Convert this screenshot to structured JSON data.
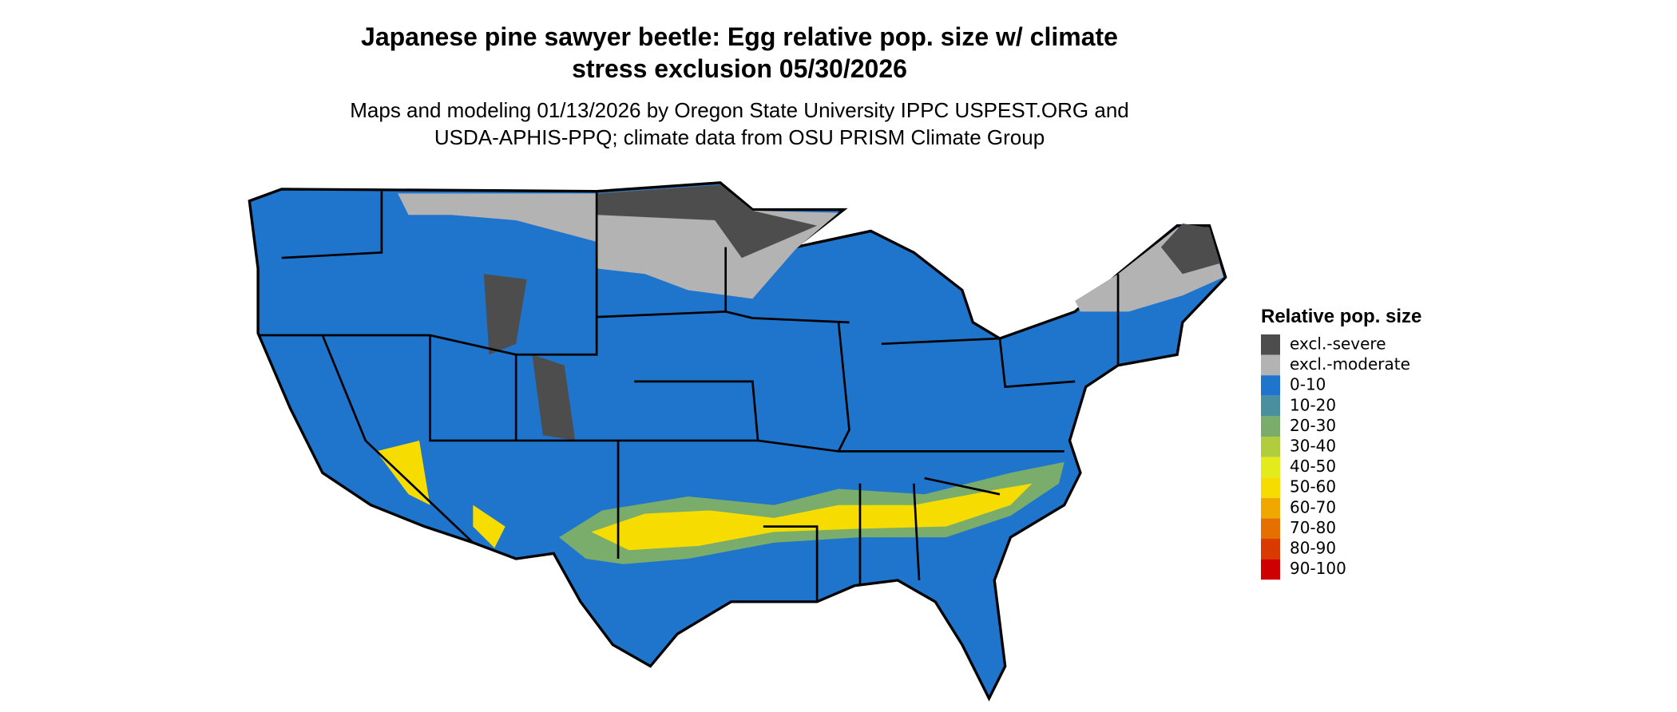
{
  "title": [
    "Japanese pine sawyer beetle: Egg relative pop. size w/ climate",
    "stress exclusion 05/30/2026"
  ],
  "subtitle": [
    "Maps and modeling 01/13/2026 by Oregon State University IPPC USPEST.ORG and",
    "USDA-APHIS-PPQ; climate data from OSU PRISM Climate Group"
  ],
  "legend": {
    "title": "Relative pop. size",
    "items": [
      {
        "label": "excl.-severe",
        "color": "#4d4d4d"
      },
      {
        "label": "excl.-moderate",
        "color": "#b3b3b3"
      },
      {
        "label": "0-10",
        "color": "#1f74cc"
      },
      {
        "label": "10-20",
        "color": "#4a8fa0"
      },
      {
        "label": "20-30",
        "color": "#7aad6c"
      },
      {
        "label": "30-40",
        "color": "#b1cc3c"
      },
      {
        "label": "40-50",
        "color": "#e3eb1c"
      },
      {
        "label": "50-60",
        "color": "#f7dc00"
      },
      {
        "label": "60-70",
        "color": "#f0a800"
      },
      {
        "label": "70-80",
        "color": "#e57000"
      },
      {
        "label": "80-90",
        "color": "#d83a00"
      },
      {
        "label": "90-100",
        "color": "#d00000"
      }
    ]
  }
}
